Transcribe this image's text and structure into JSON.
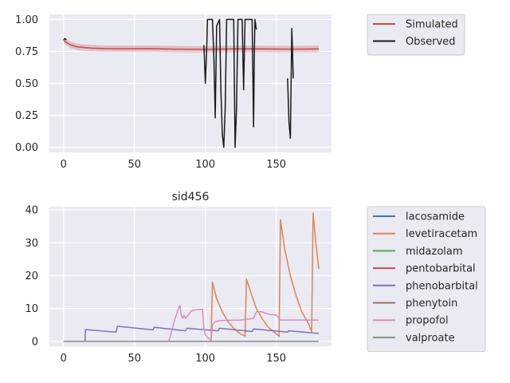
{
  "chart_data": [
    {
      "type": "line",
      "title": "",
      "xlabel": "",
      "ylabel": "",
      "xlim": [
        -10,
        189
      ],
      "ylim": [
        -0.04,
        1.04
      ],
      "xticks": [
        "0",
        "50",
        "100",
        "150"
      ],
      "yticks": [
        "0.00",
        "0.25",
        "0.50",
        "0.75",
        "1.00"
      ],
      "grid": true,
      "legend_placement": "outside-right-top",
      "series": [
        {
          "name": "Simulated",
          "color": "#c44e52",
          "band": 0.025,
          "points": [
            [
              0,
              0.84
            ],
            [
              2,
              0.82
            ],
            [
              5,
              0.8
            ],
            [
              10,
              0.785
            ],
            [
              15,
              0.78
            ],
            [
              20,
              0.775
            ],
            [
              30,
              0.772
            ],
            [
              40,
              0.771
            ],
            [
              60,
              0.772
            ],
            [
              80,
              0.768
            ],
            [
              100,
              0.766
            ],
            [
              120,
              0.77
            ],
            [
              140,
              0.77
            ],
            [
              160,
              0.768
            ],
            [
              180,
              0.77
            ]
          ]
        },
        {
          "name": "Observed",
          "color": "#1a1a1a",
          "segments": [
            [
              [
                0,
                0.84
              ],
              [
                1,
                0.85
              ],
              [
                2,
                0.84
              ]
            ],
            [
              [
                99,
                0.8
              ],
              [
                100,
                0.5
              ],
              [
                101,
                0.8
              ],
              [
                101.5,
                1.0
              ],
              [
                105,
                1.0
              ],
              [
                106,
                0.7
              ],
              [
                107,
                0.23
              ],
              [
                108,
                0.95
              ],
              [
                110,
                1.0
              ],
              [
                111,
                0.45
              ],
              [
                112,
                0.1
              ],
              [
                113,
                0.0
              ],
              [
                114,
                0.3
              ],
              [
                115,
                1.0
              ],
              [
                120,
                1.0
              ],
              [
                121,
                0.0
              ],
              [
                122,
                0.3
              ],
              [
                123,
                1.0
              ],
              [
                126,
                1.0
              ],
              [
                127,
                0.45
              ],
              [
                128,
                1.0
              ],
              [
                133,
                1.0
              ],
              [
                134,
                0.16
              ],
              [
                134.5,
                0.7
              ],
              [
                135,
                1.0
              ],
              [
                136,
                0.92
              ]
            ],
            [
              [
                158,
                0.54
              ],
              [
                159,
                0.2
              ],
              [
                160,
                0.07
              ],
              [
                161,
                0.93
              ],
              [
                162,
                0.54
              ]
            ]
          ]
        }
      ]
    },
    {
      "type": "line",
      "title": "sid456",
      "xlabel": "",
      "ylabel": "",
      "xlim": [
        -10,
        189
      ],
      "ylim": [
        -1.5,
        41
      ],
      "xticks": [
        "0",
        "50",
        "100",
        "150"
      ],
      "yticks": [
        "0",
        "10",
        "20",
        "30",
        "40"
      ],
      "grid": true,
      "legend_placement": "outside-right-top",
      "series": [
        {
          "name": "lacosamide",
          "color": "#4c72b0",
          "points": [
            [
              0,
              0
            ],
            [
              180,
              0
            ]
          ]
        },
        {
          "name": "levetiracetam",
          "color": "#dd8452",
          "points": [
            [
              0,
              0
            ],
            [
              104,
              0
            ],
            [
              105,
              18
            ],
            [
              108,
              13
            ],
            [
              112,
              9
            ],
            [
              116,
              6
            ],
            [
              120,
              4
            ],
            [
              124,
              2.5
            ],
            [
              128,
              1.5
            ],
            [
              129,
              19
            ],
            [
              132,
              15
            ],
            [
              136,
              10
            ],
            [
              140,
              7
            ],
            [
              144,
              4.5
            ],
            [
              148,
              3
            ],
            [
              152,
              1.5
            ],
            [
              153,
              37
            ],
            [
              156,
              28
            ],
            [
              160,
              20
            ],
            [
              164,
              14
            ],
            [
              168,
              9
            ],
            [
              172,
              6
            ],
            [
              175,
              3
            ],
            [
              176,
              39
            ],
            [
              178,
              30
            ],
            [
              180,
              22
            ]
          ]
        },
        {
          "name": "midazolam",
          "color": "#55a868",
          "points": [
            [
              0,
              0
            ],
            [
              180,
              0
            ]
          ]
        },
        {
          "name": "pentobarbital",
          "color": "#c44e52",
          "points": [
            [
              0,
              0
            ],
            [
              180,
              0
            ]
          ]
        },
        {
          "name": "phenobarbital",
          "color": "#8172b3",
          "points": [
            [
              0,
              0
            ],
            [
              15,
              0
            ],
            [
              15.5,
              3.6
            ],
            [
              37,
              2.8
            ],
            [
              38,
              4.6
            ],
            [
              63,
              3.5
            ],
            [
              64,
              4.3
            ],
            [
              86,
              3.2
            ],
            [
              87,
              4.0
            ],
            [
              109,
              3.2
            ],
            [
              110,
              4.0
            ],
            [
              133,
              3.0
            ],
            [
              134,
              3.8
            ],
            [
              158,
              2.8
            ],
            [
              159,
              3.2
            ],
            [
              180,
              2.4
            ]
          ]
        },
        {
          "name": "phenytoin",
          "color": "#937860",
          "points": [
            [
              0,
              0
            ],
            [
              180,
              0
            ]
          ]
        },
        {
          "name": "propofol",
          "color": "#da8bc3",
          "points": [
            [
              0,
              0
            ],
            [
              74,
              0
            ],
            [
              75,
              1
            ],
            [
              78,
              6
            ],
            [
              81,
              10
            ],
            [
              82,
              11
            ],
            [
              83,
              8
            ],
            [
              84,
              7
            ],
            [
              85,
              8
            ],
            [
              86,
              7
            ],
            [
              88,
              8
            ],
            [
              90,
              9.2
            ],
            [
              93,
              9.6
            ],
            [
              98,
              9.8
            ],
            [
              99,
              4
            ],
            [
              100,
              2
            ],
            [
              102,
              1
            ],
            [
              104,
              0.5
            ],
            [
              105,
              5
            ],
            [
              107,
              6
            ],
            [
              110,
              6.3
            ],
            [
              115,
              6.4
            ],
            [
              125,
              6.5
            ],
            [
              134,
              7
            ],
            [
              136,
              9
            ],
            [
              140,
              9
            ],
            [
              143,
              8.5
            ],
            [
              146,
              8.2
            ],
            [
              150,
              8
            ],
            [
              153,
              6.5
            ],
            [
              160,
              6.5
            ],
            [
              170,
              6.5
            ],
            [
              180,
              6.5
            ]
          ]
        },
        {
          "name": "valproate",
          "color": "#8c8c8c",
          "points": [
            [
              0,
              0
            ],
            [
              180,
              0
            ]
          ]
        }
      ]
    }
  ]
}
